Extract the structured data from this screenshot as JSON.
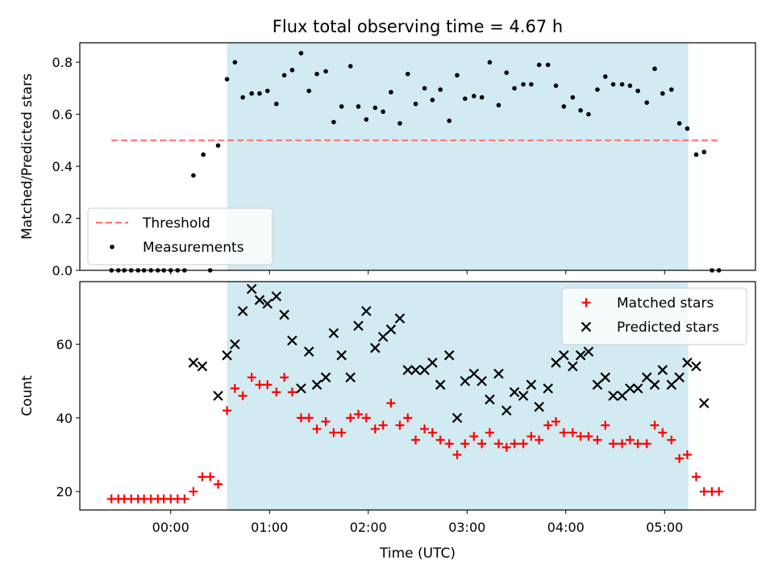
{
  "title": "Flux total observing time = 4.67 h",
  "shade_color": "#add8e6",
  "chart_data": [
    {
      "type": "scatter",
      "panel": "top",
      "xlabel": "",
      "ylabel": "Matched/Predicted stars",
      "xlim_hours": [
        -0.92,
        5.92
      ],
      "ylim": [
        0,
        0.875
      ],
      "yticks": [
        0.0,
        0.2,
        0.4,
        0.6,
        0.8
      ],
      "ytick_labels": [
        "0.0",
        "0.2",
        "0.4",
        "0.6",
        "0.8"
      ],
      "shaded_span_hours": [
        0.57,
        5.24
      ],
      "threshold": {
        "name": "Threshold",
        "value": 0.5,
        "x_range_hours": [
          -0.6,
          5.55
        ],
        "color": "#ff7070",
        "style": "dashed"
      },
      "legend": {
        "placement": "bottom-left",
        "entries": [
          "Threshold",
          "Measurements"
        ]
      },
      "series": [
        {
          "name": "Measurements",
          "marker": "dot",
          "color": "#000000",
          "points": [
            [
              -0.6,
              0
            ],
            [
              -0.53,
              0
            ],
            [
              -0.47,
              0
            ],
            [
              -0.4,
              0
            ],
            [
              -0.33,
              0
            ],
            [
              -0.27,
              0
            ],
            [
              -0.2,
              0
            ],
            [
              -0.13,
              0
            ],
            [
              -0.07,
              0
            ],
            [
              0.0,
              0
            ],
            [
              0.07,
              0
            ],
            [
              0.14,
              0
            ],
            [
              0.23,
              0.365
            ],
            [
              0.33,
              0.445
            ],
            [
              0.4,
              0
            ],
            [
              0.48,
              0.48
            ],
            [
              0.57,
              0.735
            ],
            [
              0.65,
              0.8
            ],
            [
              0.73,
              0.665
            ],
            [
              0.82,
              0.68
            ],
            [
              0.9,
              0.68
            ],
            [
              0.98,
              0.69
            ],
            [
              1.07,
              0.64
            ],
            [
              1.15,
              0.75
            ],
            [
              1.23,
              0.77
            ],
            [
              1.32,
              0.835
            ],
            [
              1.4,
              0.69
            ],
            [
              1.48,
              0.755
            ],
            [
              1.57,
              0.765
            ],
            [
              1.65,
              0.57
            ],
            [
              1.73,
              0.63
            ],
            [
              1.82,
              0.785
            ],
            [
              1.9,
              0.63
            ],
            [
              1.98,
              0.58
            ],
            [
              2.07,
              0.625
            ],
            [
              2.15,
              0.61
            ],
            [
              2.23,
              0.685
            ],
            [
              2.32,
              0.565
            ],
            [
              2.4,
              0.755
            ],
            [
              2.48,
              0.64
            ],
            [
              2.57,
              0.7
            ],
            [
              2.65,
              0.655
            ],
            [
              2.73,
              0.695
            ],
            [
              2.82,
              0.575
            ],
            [
              2.9,
              0.75
            ],
            [
              2.98,
              0.66
            ],
            [
              3.07,
              0.67
            ],
            [
              3.15,
              0.665
            ],
            [
              3.23,
              0.8
            ],
            [
              3.32,
              0.635
            ],
            [
              3.4,
              0.76
            ],
            [
              3.48,
              0.7
            ],
            [
              3.57,
              0.715
            ],
            [
              3.65,
              0.715
            ],
            [
              3.73,
              0.79
            ],
            [
              3.82,
              0.79
            ],
            [
              3.9,
              0.71
            ],
            [
              3.98,
              0.63
            ],
            [
              4.07,
              0.665
            ],
            [
              4.15,
              0.615
            ],
            [
              4.23,
              0.6
            ],
            [
              4.32,
              0.695
            ],
            [
              4.4,
              0.745
            ],
            [
              4.48,
              0.715
            ],
            [
              4.57,
              0.715
            ],
            [
              4.65,
              0.71
            ],
            [
              4.73,
              0.69
            ],
            [
              4.82,
              0.645
            ],
            [
              4.9,
              0.775
            ],
            [
              4.98,
              0.68
            ],
            [
              5.07,
              0.695
            ],
            [
              5.15,
              0.565
            ],
            [
              5.23,
              0.545
            ],
            [
              5.32,
              0.445
            ],
            [
              5.4,
              0.455
            ],
            [
              5.48,
              0
            ],
            [
              5.55,
              0
            ]
          ]
        }
      ]
    },
    {
      "type": "scatter",
      "panel": "bottom",
      "xlabel": "Time (UTC)",
      "ylabel": "Count",
      "xlim_hours": [
        -0.92,
        5.92
      ],
      "ylim": [
        15,
        77
      ],
      "yticks": [
        20,
        40,
        60
      ],
      "ytick_labels": [
        "20",
        "40",
        "60"
      ],
      "xticks_hours": [
        0,
        1,
        2,
        3,
        4,
        5
      ],
      "xtick_labels": [
        "00:00",
        "01:00",
        "02:00",
        "03:00",
        "04:00",
        "05:00"
      ],
      "shaded_span_hours": [
        0.57,
        5.24
      ],
      "legend": {
        "placement": "top-right",
        "entries": [
          "Matched stars",
          "Predicted stars"
        ]
      },
      "series": [
        {
          "name": "Matched stars",
          "marker": "plus",
          "color": "#ff0000",
          "points": [
            [
              -0.6,
              18
            ],
            [
              -0.53,
              18
            ],
            [
              -0.47,
              18
            ],
            [
              -0.4,
              18
            ],
            [
              -0.33,
              18
            ],
            [
              -0.27,
              18
            ],
            [
              -0.2,
              18
            ],
            [
              -0.13,
              18
            ],
            [
              -0.07,
              18
            ],
            [
              0.0,
              18
            ],
            [
              0.07,
              18
            ],
            [
              0.14,
              18
            ],
            [
              0.23,
              20
            ],
            [
              0.32,
              24
            ],
            [
              0.4,
              24
            ],
            [
              0.48,
              22
            ],
            [
              0.57,
              42
            ],
            [
              0.65,
              48
            ],
            [
              0.73,
              46
            ],
            [
              0.82,
              51
            ],
            [
              0.9,
              49
            ],
            [
              0.98,
              49
            ],
            [
              1.07,
              47
            ],
            [
              1.15,
              51
            ],
            [
              1.23,
              47
            ],
            [
              1.32,
              40
            ],
            [
              1.4,
              40
            ],
            [
              1.48,
              37
            ],
            [
              1.57,
              39
            ],
            [
              1.65,
              36
            ],
            [
              1.73,
              36
            ],
            [
              1.82,
              40
            ],
            [
              1.9,
              41
            ],
            [
              1.98,
              40
            ],
            [
              2.07,
              37
            ],
            [
              2.15,
              38
            ],
            [
              2.23,
              44
            ],
            [
              2.32,
              38
            ],
            [
              2.4,
              40
            ],
            [
              2.48,
              34
            ],
            [
              2.57,
              37
            ],
            [
              2.65,
              36
            ],
            [
              2.73,
              34
            ],
            [
              2.82,
              33
            ],
            [
              2.9,
              30
            ],
            [
              2.98,
              33
            ],
            [
              3.07,
              35
            ],
            [
              3.15,
              33
            ],
            [
              3.23,
              36
            ],
            [
              3.32,
              33
            ],
            [
              3.4,
              32
            ],
            [
              3.48,
              33
            ],
            [
              3.57,
              33
            ],
            [
              3.65,
              35
            ],
            [
              3.73,
              34
            ],
            [
              3.82,
              38
            ],
            [
              3.9,
              39
            ],
            [
              3.98,
              36
            ],
            [
              4.07,
              36
            ],
            [
              4.15,
              35
            ],
            [
              4.23,
              35
            ],
            [
              4.32,
              34
            ],
            [
              4.4,
              38
            ],
            [
              4.48,
              33
            ],
            [
              4.57,
              33
            ],
            [
              4.65,
              34
            ],
            [
              4.73,
              33
            ],
            [
              4.82,
              33
            ],
            [
              4.9,
              38
            ],
            [
              4.98,
              36
            ],
            [
              5.07,
              34
            ],
            [
              5.15,
              29
            ],
            [
              5.23,
              30
            ],
            [
              5.32,
              24
            ],
            [
              5.4,
              20
            ],
            [
              5.48,
              20
            ],
            [
              5.55,
              20
            ]
          ]
        },
        {
          "name": "Predicted stars",
          "marker": "x",
          "color": "#000000",
          "points": [
            [
              0.23,
              55
            ],
            [
              0.32,
              54
            ],
            [
              0.48,
              46
            ],
            [
              0.57,
              57
            ],
            [
              0.65,
              60
            ],
            [
              0.73,
              69
            ],
            [
              0.82,
              75
            ],
            [
              0.9,
              72
            ],
            [
              0.98,
              71
            ],
            [
              1.07,
              73
            ],
            [
              1.15,
              68
            ],
            [
              1.23,
              61
            ],
            [
              1.32,
              48
            ],
            [
              1.4,
              58
            ],
            [
              1.48,
              49
            ],
            [
              1.57,
              51
            ],
            [
              1.65,
              63
            ],
            [
              1.73,
              57
            ],
            [
              1.82,
              51
            ],
            [
              1.9,
              65
            ],
            [
              1.98,
              69
            ],
            [
              2.07,
              59
            ],
            [
              2.15,
              62
            ],
            [
              2.23,
              64
            ],
            [
              2.32,
              67
            ],
            [
              2.4,
              53
            ],
            [
              2.48,
              53
            ],
            [
              2.57,
              53
            ],
            [
              2.65,
              55
            ],
            [
              2.73,
              49
            ],
            [
              2.82,
              57
            ],
            [
              2.9,
              40
            ],
            [
              2.98,
              50
            ],
            [
              3.07,
              52
            ],
            [
              3.15,
              50
            ],
            [
              3.23,
              45
            ],
            [
              3.32,
              52
            ],
            [
              3.4,
              42
            ],
            [
              3.48,
              47
            ],
            [
              3.57,
              46
            ],
            [
              3.65,
              49
            ],
            [
              3.73,
              43
            ],
            [
              3.82,
              48
            ],
            [
              3.9,
              55
            ],
            [
              3.98,
              57
            ],
            [
              4.07,
              54
            ],
            [
              4.15,
              57
            ],
            [
              4.23,
              58
            ],
            [
              4.32,
              49
            ],
            [
              4.4,
              51
            ],
            [
              4.48,
              46
            ],
            [
              4.57,
              46
            ],
            [
              4.65,
              48
            ],
            [
              4.73,
              48
            ],
            [
              4.82,
              51
            ],
            [
              4.9,
              49
            ],
            [
              4.98,
              53
            ],
            [
              5.07,
              49
            ],
            [
              5.15,
              51
            ],
            [
              5.23,
              55
            ],
            [
              5.32,
              54
            ],
            [
              5.4,
              44
            ]
          ]
        }
      ]
    }
  ]
}
